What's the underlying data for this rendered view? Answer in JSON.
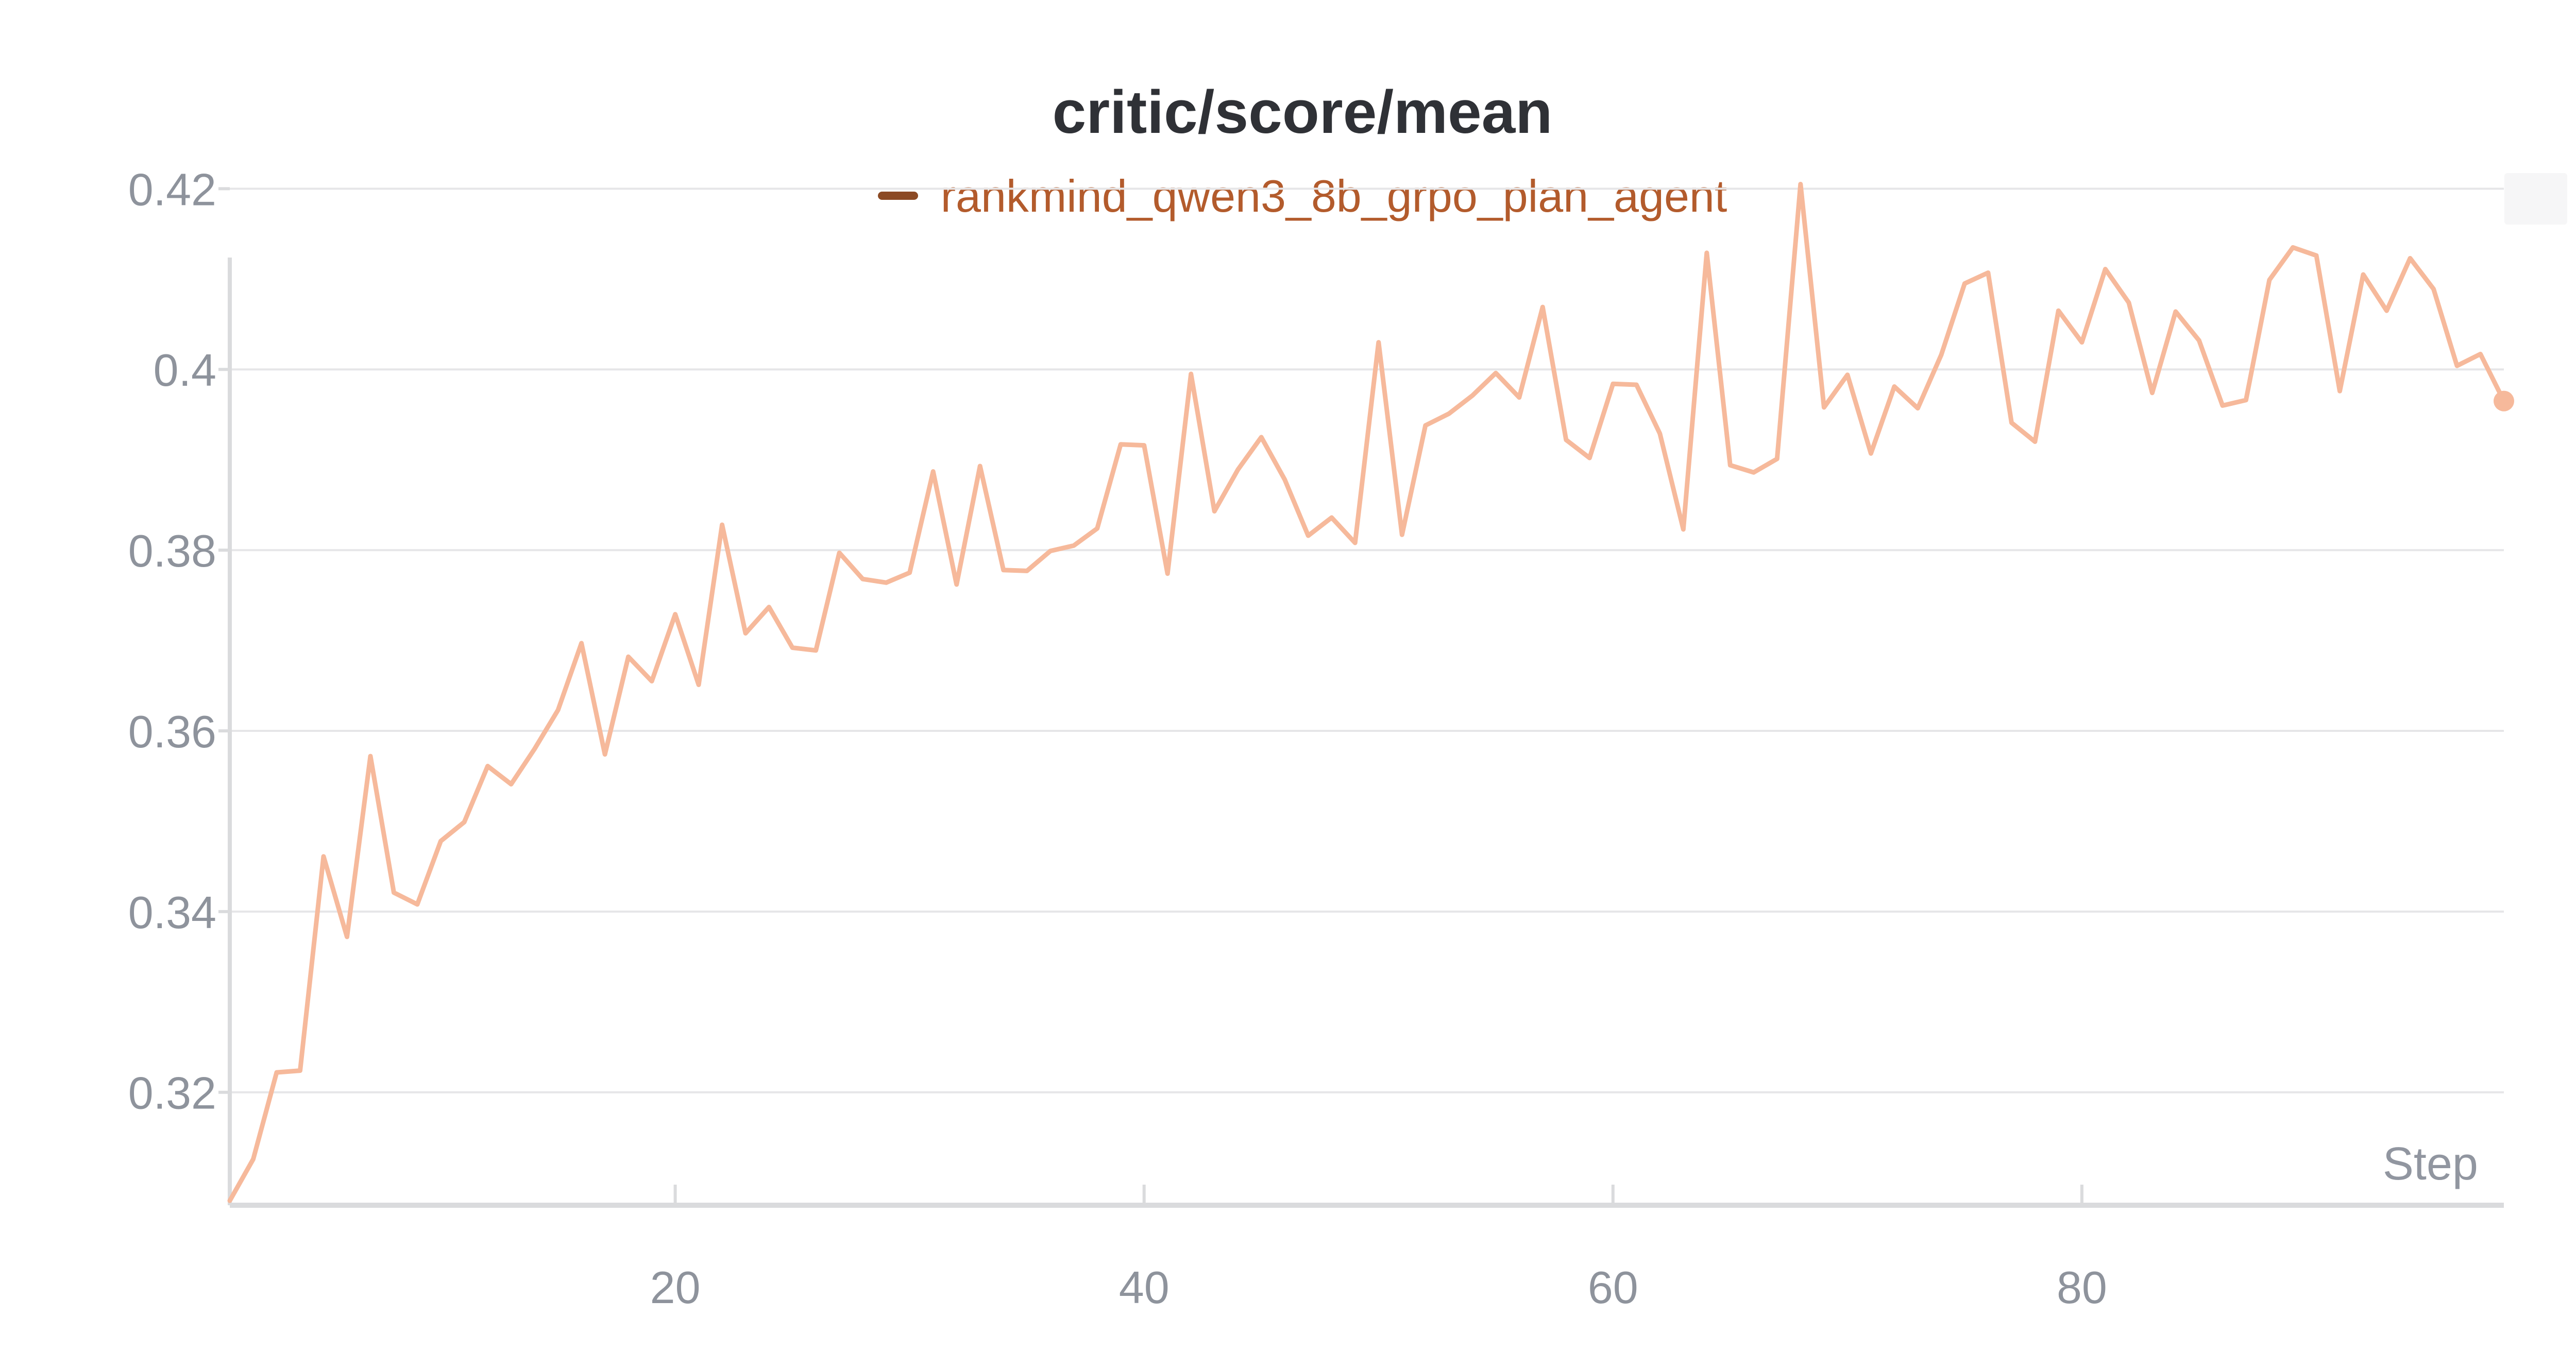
{
  "chart_data": {
    "type": "line",
    "title": "critic/score/mean",
    "xlabel": "Step",
    "ylabel": "",
    "xlim": [
      1,
      98
    ],
    "ylim": [
      0.3075,
      0.4215
    ],
    "xticks": [
      20,
      40,
      60,
      80
    ],
    "yticks": [
      0.32,
      0.34,
      0.36,
      0.38,
      0.4,
      0.42
    ],
    "ytick_labels": [
      "0.32",
      "0.34",
      "0.36",
      "0.38",
      "0.4",
      "0.42"
    ],
    "grid": true,
    "legend_position": "top-center",
    "series": [
      {
        "name": "rankmind_qwen3_8b_grpo_plan_agent",
        "color": "#f6b99b",
        "legend_color": "#8c4a24",
        "x": [
          1,
          2,
          3,
          4,
          5,
          6,
          7,
          8,
          9,
          10,
          11,
          12,
          13,
          14,
          15,
          16,
          17,
          18,
          19,
          20,
          21,
          22,
          23,
          24,
          25,
          26,
          27,
          28,
          29,
          30,
          31,
          32,
          33,
          34,
          35,
          36,
          37,
          38,
          39,
          40,
          41,
          42,
          43,
          44,
          45,
          46,
          47,
          48,
          49,
          50,
          51,
          52,
          53,
          54,
          55,
          56,
          57,
          58,
          59,
          60,
          61,
          62,
          63,
          64,
          65,
          66,
          67,
          68,
          69,
          70,
          71,
          72,
          73,
          74,
          75,
          76,
          77,
          78,
          79,
          80,
          81,
          82,
          83,
          84,
          85,
          86,
          87,
          88,
          89,
          90,
          91,
          92,
          93,
          94,
          95,
          96,
          97,
          98
        ],
        "values": [
          0.308,
          0.3126,
          0.3222,
          0.3224,
          0.3461,
          0.3372,
          0.3572,
          0.3421,
          0.3408,
          0.3478,
          0.3499,
          0.3561,
          0.3541,
          0.358,
          0.3623,
          0.3697,
          0.3574,
          0.3682,
          0.3655,
          0.3729,
          0.3651,
          0.3828,
          0.3708,
          0.3737,
          0.3692,
          0.3689,
          0.3797,
          0.3768,
          0.3764,
          0.3775,
          0.3887,
          0.3762,
          0.3893,
          0.3778,
          0.3777,
          0.3799,
          0.3805,
          0.3824,
          0.3917,
          0.3916,
          0.3774,
          0.3995,
          0.3843,
          0.3889,
          0.3925,
          0.3878,
          0.3816,
          0.3836,
          0.3808,
          0.403,
          0.3817,
          0.3938,
          0.3951,
          0.3971,
          0.3996,
          0.3969,
          0.4069,
          0.3922,
          0.3902,
          0.3984,
          0.3983,
          0.3929,
          0.3823,
          0.4129,
          0.3894,
          0.3886,
          0.3901,
          0.4205,
          0.3958,
          0.3994,
          0.3907,
          0.3981,
          0.3957,
          0.4016,
          0.4095,
          0.4107,
          0.3941,
          0.392,
          0.4065,
          0.403,
          0.4111,
          0.4074,
          0.3974,
          0.4064,
          0.4032,
          0.396,
          0.3966,
          0.4099,
          0.4135,
          0.4126,
          0.3976,
          0.4105,
          0.4065,
          0.4123,
          0.4089,
          0.4004,
          0.4017,
          0.3965
        ]
      }
    ]
  }
}
